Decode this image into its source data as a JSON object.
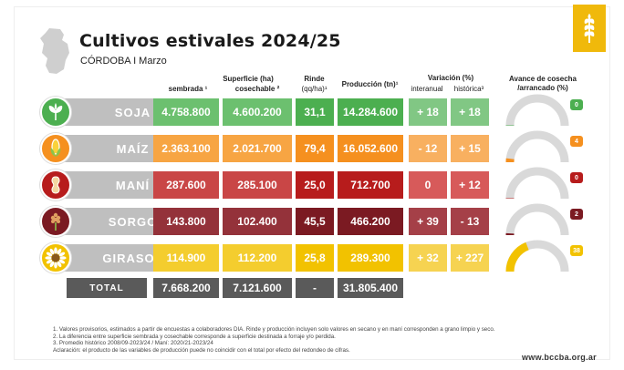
{
  "title": "Cultivos estivales 2024/25",
  "subtitle": "CÓRDOBA I Marzo",
  "headers": {
    "superficie": "Superficie (ha)",
    "sembrada": "sembrada ¹",
    "cosechable": "cosechable ²",
    "rinde": "Rinde",
    "rinde_unit": "(qq/ha)¹",
    "produccion": "Producción (tn)¹",
    "variacion": "Variación (%)",
    "interanual": "interanual",
    "historica": "histórica³",
    "avance1": "Avance de cosecha",
    "avance2": "/arrancado (%)"
  },
  "colors": {
    "soja": "#4caf50",
    "maiz": "#f5901f",
    "mani": "#b71c1c",
    "sorgo": "#7b1a22",
    "girasol": "#f2c200",
    "gray": "#bfbfbf",
    "total": "#5a5a5a"
  },
  "rows": [
    {
      "name": "SOJA",
      "sembrada": "4.758.800",
      "cosechable": "4.600.200",
      "rinde": "31,1",
      "produccion": "14.284.600",
      "interanual": "+ 18",
      "historica": "+ 18",
      "avance": "0",
      "avance_value": 0,
      "icon": "soy-leaf-icon"
    },
    {
      "name": "MAÍZ",
      "sembrada": "2.363.100",
      "cosechable": "2.021.700",
      "rinde": "79,4",
      "produccion": "16.052.600",
      "interanual": "- 12",
      "historica": "+ 15",
      "avance": "4",
      "avance_value": 4,
      "icon": "corn-icon"
    },
    {
      "name": "MANÍ",
      "sembrada": "287.600",
      "cosechable": "285.100",
      "rinde": "25,0",
      "produccion": "712.700",
      "interanual": "0",
      "historica": "+ 12",
      "avance": "0",
      "avance_value": 0,
      "icon": "peanut-icon"
    },
    {
      "name": "SORGO",
      "sembrada": "143.800",
      "cosechable": "102.400",
      "rinde": "45,5",
      "produccion": "466.200",
      "interanual": "+ 39",
      "historica": "- 13",
      "avance": "2",
      "avance_value": 2,
      "icon": "sorghum-icon"
    },
    {
      "name": "GIRASOL",
      "sembrada": "114.900",
      "cosechable": "112.200",
      "rinde": "25,8",
      "produccion": "289.300",
      "interanual": "+ 32",
      "historica": "+ 227",
      "avance": "38",
      "avance_value": 38,
      "icon": "sunflower-icon"
    }
  ],
  "total": {
    "label": "TOTAL",
    "sembrada": "7.668.200",
    "cosechable": "7.121.600",
    "rinde": "-",
    "produccion": "31.805.400"
  },
  "footnotes": [
    "1. Valores provisorios, estimados a partir de encuestas a colaboradores DIA. Rinde y producción incluyen solo valores en secano y en maní corresponden a grano limpio y seco.",
    "2. La diferencia entre superficie sembrada y cosechable corresponde a superficie destinada a forraje y/o perdida.",
    "3. Promedio histórico 2008/09-2023/24 / Maní: 2020/21-2023/24",
    "Aclaración: el producto de las variables de producción puede no coincidir con el total por efecto del redondeo de cifras."
  ],
  "url": "www.bccba.org.ar"
}
